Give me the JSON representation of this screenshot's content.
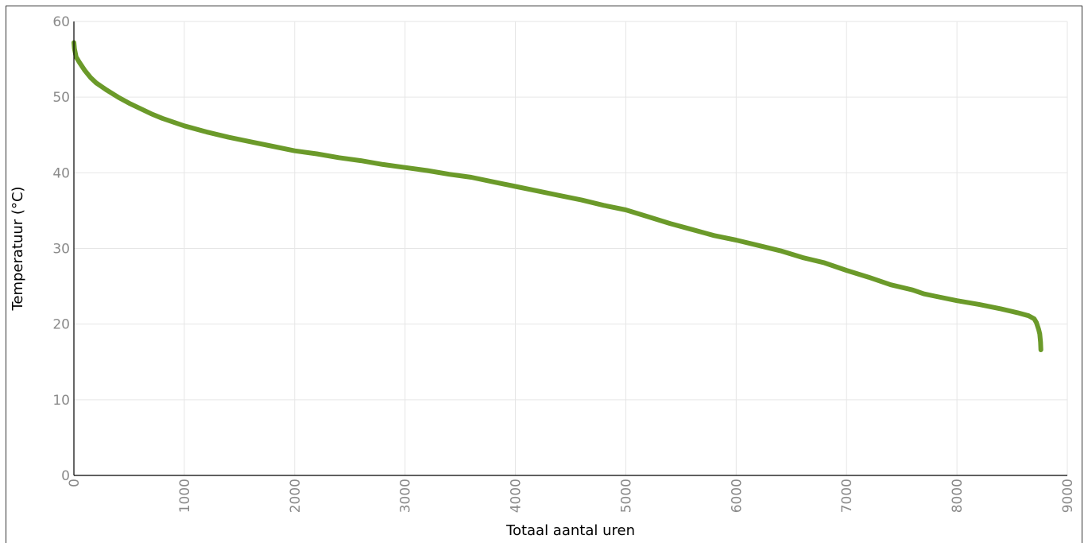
{
  "chart_data": {
    "type": "line",
    "xlabel": "Totaal aantal uren",
    "ylabel": "Temperatuur (°C)",
    "xlim": [
      0,
      9000
    ],
    "ylim": [
      0,
      60
    ],
    "grid": true,
    "x_ticks": [
      "0",
      "1000",
      "2000",
      "3000",
      "4000",
      "5000",
      "6000",
      "7000",
      "8000",
      "9000"
    ],
    "y_ticks": [
      "0",
      "10",
      "20",
      "30",
      "40",
      "50",
      "60"
    ],
    "series": [
      {
        "color": "#6b9a2a",
        "points": [
          [
            0,
            57.2
          ],
          [
            5,
            56.4
          ],
          [
            20,
            55.3
          ],
          [
            50,
            54.6
          ],
          [
            100,
            53.5
          ],
          [
            150,
            52.6
          ],
          [
            200,
            51.9
          ],
          [
            300,
            50.9
          ],
          [
            400,
            50.0
          ],
          [
            500,
            49.2
          ],
          [
            600,
            48.5
          ],
          [
            700,
            47.8
          ],
          [
            800,
            47.2
          ],
          [
            900,
            46.7
          ],
          [
            1000,
            46.2
          ],
          [
            1200,
            45.4
          ],
          [
            1400,
            44.7
          ],
          [
            1600,
            44.1
          ],
          [
            1800,
            43.5
          ],
          [
            2000,
            42.9
          ],
          [
            2200,
            42.5
          ],
          [
            2400,
            42.0
          ],
          [
            2600,
            41.6
          ],
          [
            2800,
            41.1
          ],
          [
            3000,
            40.7
          ],
          [
            3200,
            40.3
          ],
          [
            3400,
            39.8
          ],
          [
            3600,
            39.4
          ],
          [
            3800,
            38.8
          ],
          [
            4000,
            38.2
          ],
          [
            4200,
            37.6
          ],
          [
            4400,
            37.0
          ],
          [
            4600,
            36.4
          ],
          [
            4800,
            35.7
          ],
          [
            5000,
            35.1
          ],
          [
            5200,
            34.2
          ],
          [
            5400,
            33.3
          ],
          [
            5600,
            32.5
          ],
          [
            5800,
            31.7
          ],
          [
            6000,
            31.1
          ],
          [
            6200,
            30.4
          ],
          [
            6400,
            29.7
          ],
          [
            6600,
            28.8
          ],
          [
            6800,
            28.1
          ],
          [
            7000,
            27.1
          ],
          [
            7200,
            26.2
          ],
          [
            7400,
            25.2
          ],
          [
            7600,
            24.5
          ],
          [
            7700,
            24.0
          ],
          [
            7800,
            23.7
          ],
          [
            8000,
            23.1
          ],
          [
            8200,
            22.6
          ],
          [
            8400,
            22.0
          ],
          [
            8550,
            21.5
          ],
          [
            8650,
            21.1
          ],
          [
            8700,
            20.7
          ],
          [
            8720,
            20.2
          ],
          [
            8740,
            19.3
          ],
          [
            8750,
            18.7
          ],
          [
            8757,
            17.6
          ],
          [
            8760,
            16.6
          ]
        ]
      }
    ]
  }
}
